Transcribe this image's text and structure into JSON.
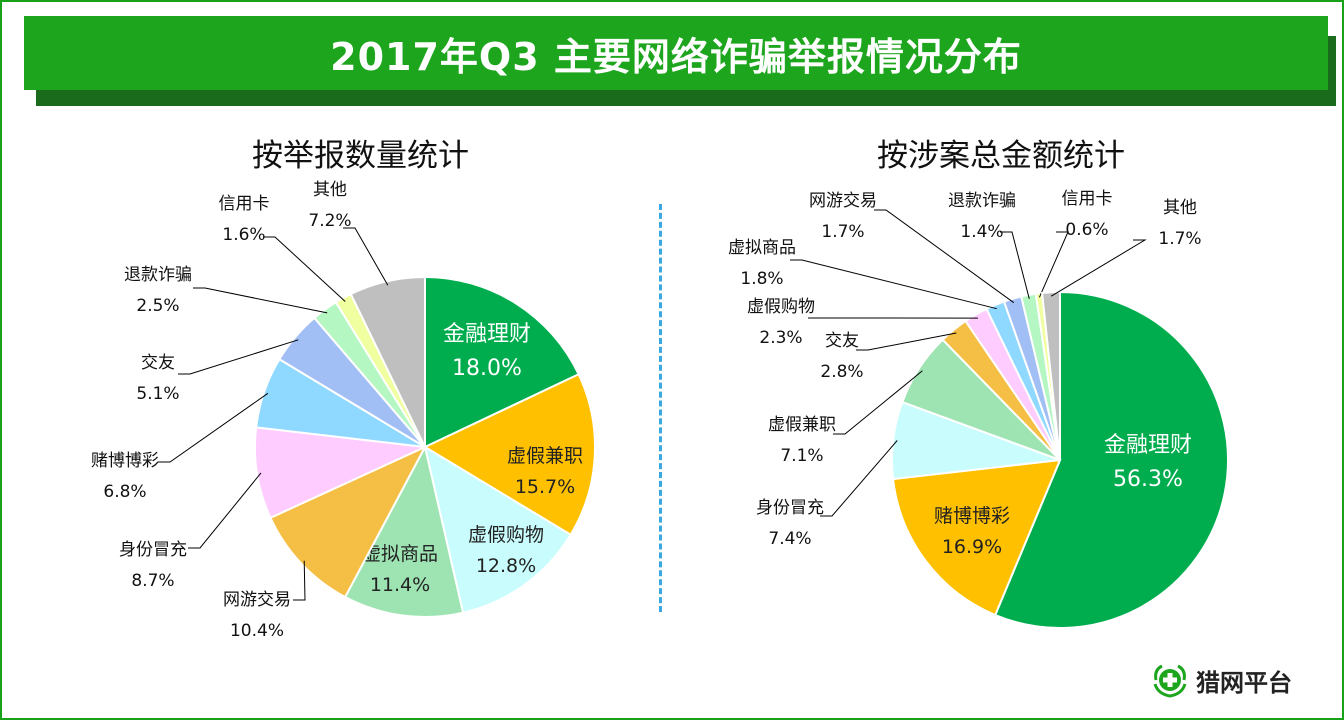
{
  "header": {
    "title": "2017年Q3 主要网络诈骗举报情况分布"
  },
  "logo": {
    "text": "猎网平台",
    "icon": "cross-shield-icon"
  },
  "chart_data": [
    {
      "type": "pie",
      "title": "按举报数量统计",
      "slices": [
        {
          "label": "金融理财",
          "value": 18.0,
          "display": "18.0%",
          "color": "#00ad4e"
        },
        {
          "label": "虚假兼职",
          "value": 15.7,
          "display": "15.7%",
          "color": "#ffc000"
        },
        {
          "label": "虚假购物",
          "value": 12.8,
          "display": "12.8%",
          "color": "#c9fcfc"
        },
        {
          "label": "虚拟商品",
          "value": 11.4,
          "display": "11.4%",
          "color": "#9ee4b2"
        },
        {
          "label": "网游交易",
          "value": 10.4,
          "display": "10.4%",
          "color": "#f5be45"
        },
        {
          "label": "身份冒充",
          "value": 8.7,
          "display": "8.7%",
          "color": "#ffccff"
        },
        {
          "label": "赌博博彩",
          "value": 6.8,
          "display": "6.8%",
          "color": "#8fd8ff"
        },
        {
          "label": "交友",
          "value": 5.1,
          "display": "5.1%",
          "color": "#a2bff5"
        },
        {
          "label": "退款诈骗",
          "value": 2.5,
          "display": "2.5%",
          "color": "#b5f7c2"
        },
        {
          "label": "信用卡",
          "value": 1.6,
          "display": "1.6%",
          "color": "#f0ffa0"
        },
        {
          "label": "其他",
          "value": 7.2,
          "display": "7.2%",
          "color": "#bfbfbf"
        }
      ]
    },
    {
      "type": "pie",
      "title": "按涉案总金额统计",
      "slices": [
        {
          "label": "金融理财",
          "value": 56.3,
          "display": "56.3%",
          "color": "#00ad4e"
        },
        {
          "label": "赌博博彩",
          "value": 16.9,
          "display": "16.9%",
          "color": "#ffc000"
        },
        {
          "label": "身份冒充",
          "value": 7.4,
          "display": "7.4%",
          "color": "#c9fcfc"
        },
        {
          "label": "虚假兼职",
          "value": 7.1,
          "display": "7.1%",
          "color": "#9ee4b2"
        },
        {
          "label": "交友",
          "value": 2.8,
          "display": "2.8%",
          "color": "#f5be45"
        },
        {
          "label": "虚假购物",
          "value": 2.3,
          "display": "2.3%",
          "color": "#ffccff"
        },
        {
          "label": "虚拟商品",
          "value": 1.8,
          "display": "1.8%",
          "color": "#8fd8ff"
        },
        {
          "label": "网游交易",
          "value": 1.7,
          "display": "1.7%",
          "color": "#a2bff5"
        },
        {
          "label": "退款诈骗",
          "value": 1.4,
          "display": "1.4%",
          "color": "#b5f7c2"
        },
        {
          "label": "信用卡",
          "value": 0.6,
          "display": "0.6%",
          "color": "#f0ffa0"
        },
        {
          "label": "其他",
          "value": 1.7,
          "display": "1.7%",
          "color": "#bfbfbf"
        }
      ]
    }
  ]
}
